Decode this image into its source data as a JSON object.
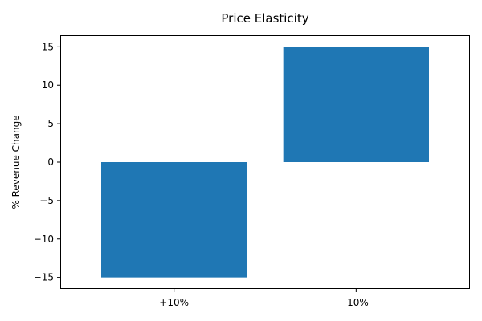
{
  "chart_data": {
    "type": "bar",
    "title": "Price Elasticity",
    "xlabel": "",
    "ylabel": "% Revenue Change",
    "categories": [
      "+10%",
      "-10%"
    ],
    "values": [
      -15,
      15
    ],
    "ylim": [
      -16.5,
      16.5
    ],
    "yticks": [
      -15,
      -10,
      -5,
      0,
      5,
      10,
      15
    ],
    "ytick_labels": [
      "−15",
      "−10",
      "−5",
      "0",
      "5",
      "10",
      "15"
    ],
    "bar_color": "#1f77b4",
    "grid": false,
    "legend": "none"
  }
}
